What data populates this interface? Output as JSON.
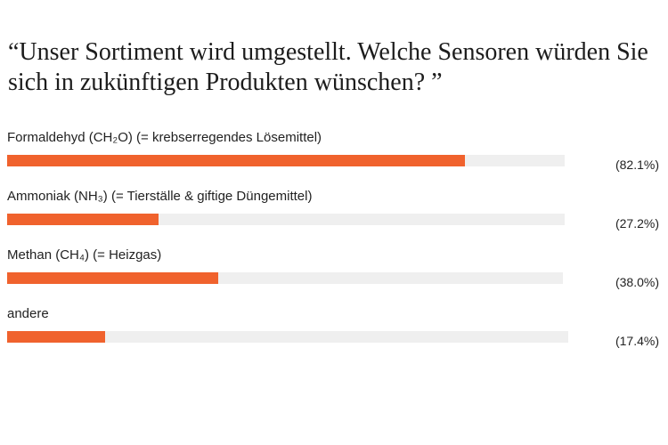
{
  "chart_data": {
    "type": "bar",
    "title": "“Unser Sortiment wird umgestellt. Welche Sensoren würden Sie sich in zukünftigen Produkten wünschen? ”",
    "categories": [
      "Formaldehyd (CH₂O) (= krebserregendes Lösemittel)",
      "Ammoniak (NH₃) (= Tierställe & giftige Düngemittel)",
      "Methan (CH₄) (= Heizgas)",
      "andere"
    ],
    "values": [
      82.1,
      27.2,
      38.0,
      17.4
    ],
    "value_labels": [
      "(82.1%)",
      "(27.2%)",
      "(38.0%)",
      "(17.4%)"
    ],
    "xlim": [
      0,
      100
    ],
    "unit": "%",
    "orientation": "horizontal",
    "grid": false,
    "legend": "none",
    "colors": {
      "bar": "#f0622d",
      "track": "#efefef"
    }
  }
}
